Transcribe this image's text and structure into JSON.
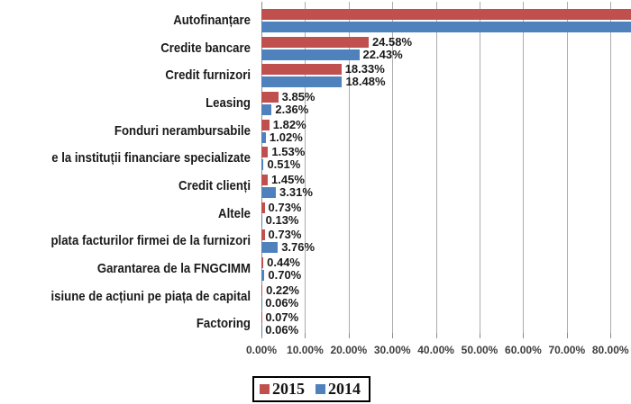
{
  "chart_data": {
    "type": "bar",
    "orientation": "horizontal",
    "title": "",
    "categories": [
      "Autofinanțare",
      "Credite bancare",
      "Credit furnizori",
      "Leasing",
      "Fonduri nerambursabile",
      "e la instituții financiare specializate",
      "Credit clienți",
      "Altele",
      "plata facturilor firmei de la furnizori",
      "Garantarea de la FNGCIMM",
      "isiune de acțiuni pe piața de capital",
      "Factoring"
    ],
    "series": [
      {
        "name": "2015",
        "color": "#C0504D",
        "values": [
          null,
          24.58,
          18.33,
          3.85,
          1.82,
          1.53,
          1.45,
          0.73,
          0.73,
          0.44,
          0.22,
          0.07
        ],
        "labels": [
          "",
          "24.58%",
          "18.33%",
          "3.85%",
          "1.82%",
          "1.53%",
          "1.45%",
          "0.73%",
          "0.73%",
          "0.44%",
          "0.22%",
          "0.07%"
        ]
      },
      {
        "name": "2014",
        "color": "#4F81BD",
        "values": [
          null,
          22.43,
          18.48,
          2.36,
          1.02,
          0.51,
          3.31,
          0.13,
          3.76,
          0.7,
          0.06,
          0.06
        ],
        "labels": [
          "",
          "22.43%",
          "18.48%",
          "2.36%",
          "1.02%",
          "0.51%",
          "3.31%",
          "0.13%",
          "3.76%",
          "0.70%",
          "0.06%",
          "0.06%"
        ]
      }
    ],
    "x_ticks": [
      "0.00%",
      "10.00%",
      "20.00%",
      "30.00%",
      "40.00%",
      "50.00%",
      "60.00%",
      "70.00%",
      "80.00%"
    ],
    "xlim": [
      0,
      80
    ],
    "grid": true,
    "legend_position": "bottom",
    "bars_clipped_at_right_edge": [
      "Autofinanțare"
    ]
  },
  "legend": {
    "items": [
      {
        "label": "2015",
        "color": "#C0504D"
      },
      {
        "label": "2014",
        "color": "#4F81BD"
      }
    ]
  },
  "colors": {
    "bar_2015": "#C0504D",
    "bar_2014": "#4F81BD",
    "gridline": "#ACACAC",
    "axis_line": "#8C8C8C",
    "label_text": "#1A1A1A",
    "tick_text": "#3D3D3D"
  }
}
